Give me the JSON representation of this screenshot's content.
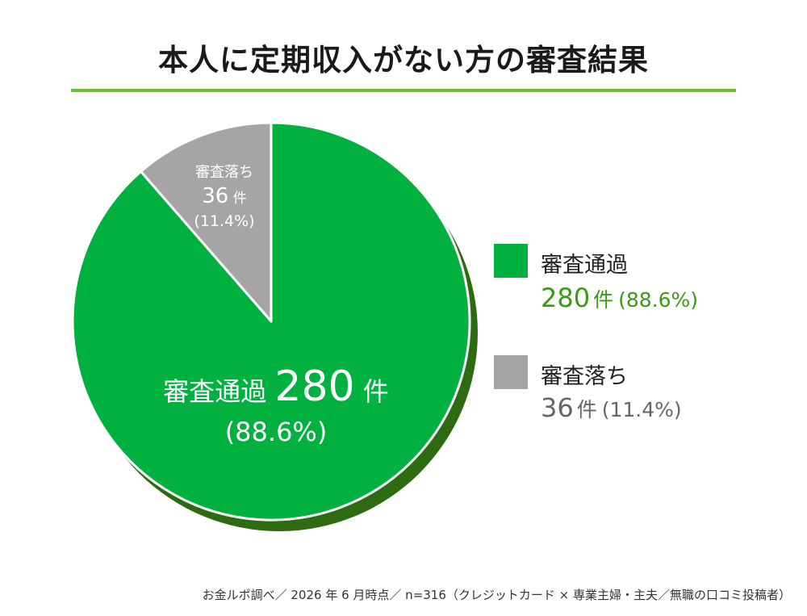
{
  "title": "本人に定期収入がない方の審査結果",
  "chart_data": {
    "type": "pie",
    "title": "本人に定期収入がない方の審査結果",
    "total": 316,
    "slices": [
      {
        "name": "審査通過",
        "value": 280,
        "unit": "件",
        "percent": "(88.6%)",
        "color": "#00b140"
      },
      {
        "name": "審査落ち",
        "value": 36,
        "unit": "件",
        "percent": "(11.4%)",
        "color": "#a5a5a5"
      }
    ],
    "shadow_color": "#2e6a12",
    "legend_position": "right",
    "legend_value_colors": [
      "#3a9a14",
      "#666666"
    ]
  },
  "footnote": "お金ルポ調べ／ 2026 年 6 月時点／ n=316（クレジットカード × 専業主婦・主夫／無職の口コミ投稿者）"
}
